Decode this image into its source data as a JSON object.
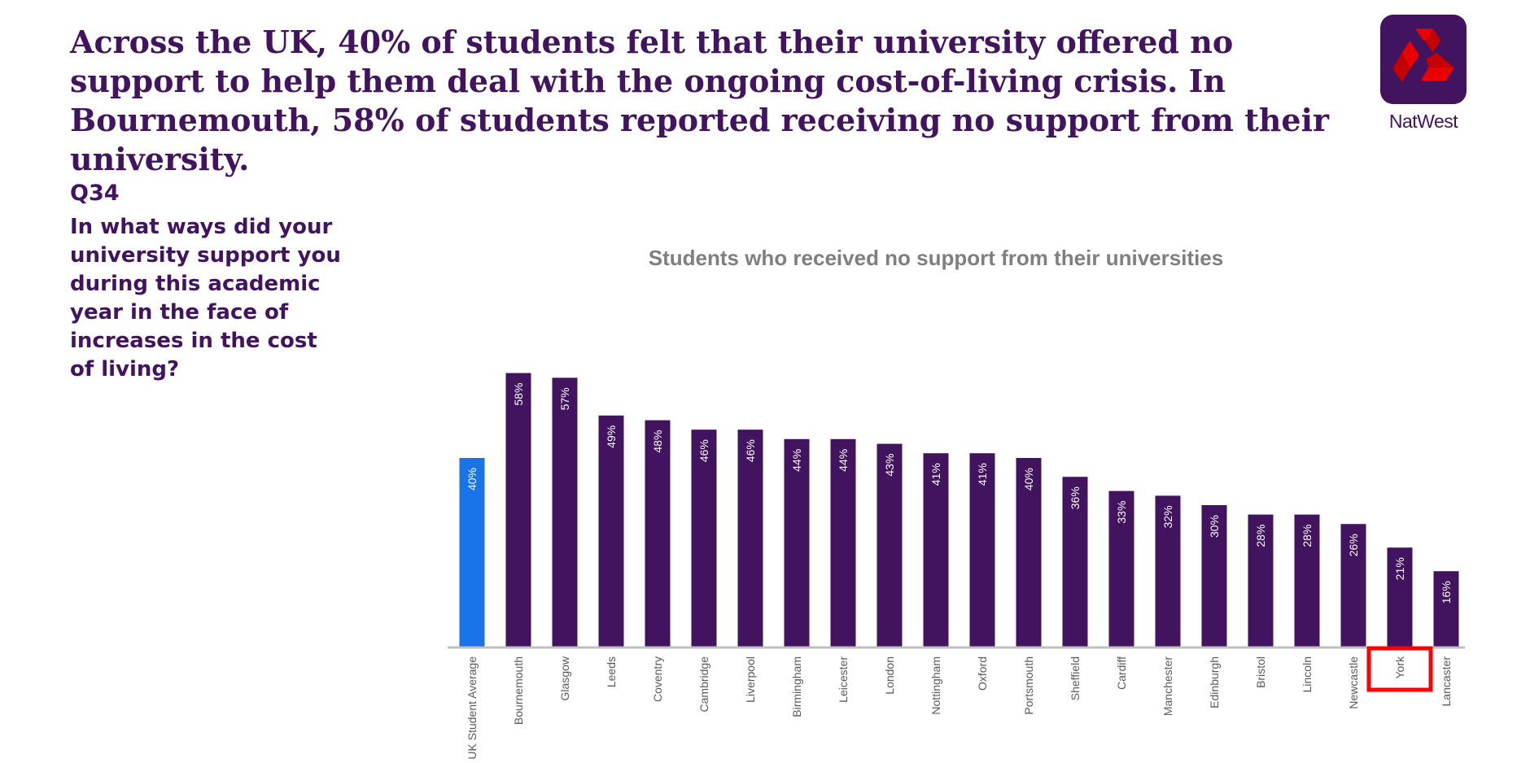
{
  "headline": "Across the UK, 40% of students felt that their university offered no support to help them deal with the ongoing cost-of-living crisis. In Bournemouth, 58% of students reported receiving no support from their university.",
  "brand": {
    "name": "NatWest",
    "logo_icon": "natwest-cubes-icon",
    "logo_bg": "#42145f",
    "logo_mark": "#e90000"
  },
  "question": {
    "number": "Q34",
    "text": "In what ways did your university support you during this academic year in the face of increases in the cost of living?"
  },
  "chart_data": {
    "type": "bar",
    "title": "Students who received no support from their universities",
    "categories": [
      "UK Student Average",
      "Bournemouth",
      "Glasgow",
      "Leeds",
      "Coventry",
      "Cambridge",
      "Liverpool",
      "Birmingham",
      "Leicester",
      "London",
      "Nottingham",
      "Oxford",
      "Portsmouth",
      "Sheffield",
      "Cardiff",
      "Manchester",
      "Edinburgh",
      "Bristol",
      "Lincoln",
      "Newcastle",
      "York",
      "Lancaster"
    ],
    "values": [
      40,
      58,
      57,
      49,
      48,
      46,
      46,
      44,
      44,
      43,
      41,
      41,
      40,
      36,
      33,
      32,
      30,
      28,
      28,
      26,
      21,
      16
    ],
    "data_labels": [
      "40%",
      "58%",
      "57%",
      "49%",
      "48%",
      "46%",
      "46%",
      "44%",
      "44%",
      "43%",
      "41%",
      "41%",
      "40%",
      "36%",
      "33%",
      "32%",
      "30%",
      "28%",
      "28%",
      "26%",
      "21%",
      "16%"
    ],
    "ylim": [
      0,
      60
    ],
    "grid": false,
    "legend": "none",
    "colors": {
      "bar": "#42145f",
      "highlight_bar": "#1a73e8",
      "axis": "#bfbfbf",
      "title": "#7f7f7f",
      "tick_label": "#595959",
      "callout_box": "#ff0000"
    },
    "highlighted_bar": "UK Student Average",
    "boxed_label": "York"
  }
}
